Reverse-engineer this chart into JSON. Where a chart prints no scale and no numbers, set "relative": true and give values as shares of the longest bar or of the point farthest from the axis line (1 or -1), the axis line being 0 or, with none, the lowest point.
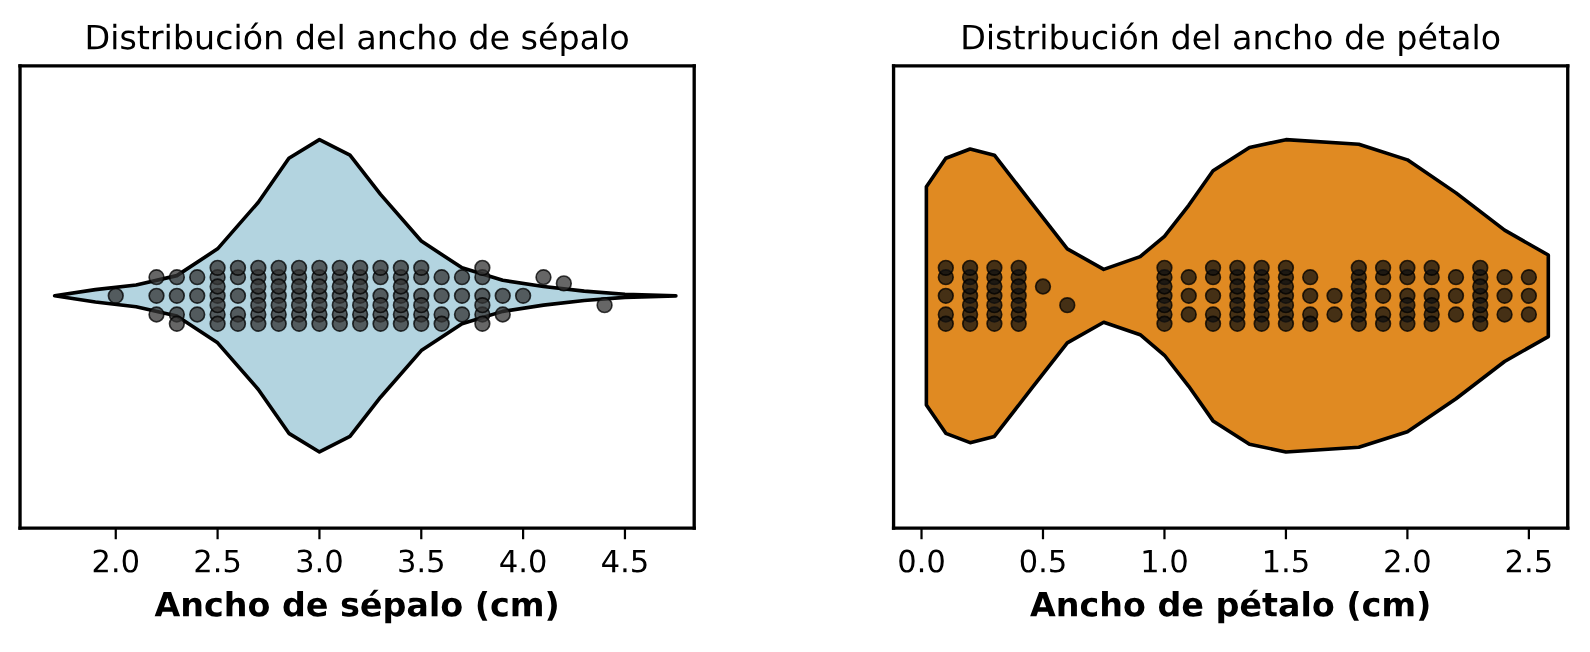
{
  "chart_data": [
    {
      "type": "area",
      "title": "Distribución del ancho de sépalo",
      "xlabel": "Ancho de sépalo (cm)",
      "relative": true,
      "grid": false,
      "xlim": [
        1.53,
        4.84
      ],
      "xticks": [
        {
          "value": 2,
          "label": "2.0"
        },
        2.5,
        {
          "value": 3,
          "label": "3.0"
        },
        3.5,
        {
          "value": 4,
          "label": "4.0"
        },
        4.5
      ],
      "series": [
        {
          "color": "#b3d4e0",
          "x": [
            1.7,
            1.9,
            2.1,
            2.3,
            2.5,
            2.7,
            2.85,
            3.0,
            3.15,
            3.3,
            3.5,
            3.7,
            3.9,
            4.1,
            4.3,
            4.5,
            4.75,
            4.5,
            4.3,
            4.1,
            3.9,
            3.7,
            3.5,
            3.3,
            3.15,
            3.0,
            2.85,
            2.7,
            2.5,
            2.3,
            2.1,
            1.9
          ],
          "values": [
            0.598,
            0.614,
            0.626,
            0.65,
            0.719,
            0.839,
            0.952,
            1.0,
            0.96,
            0.859,
            0.739,
            0.67,
            0.638,
            0.622,
            0.61,
            0.602,
            0.598,
            0.594,
            0.586,
            0.574,
            0.558,
            0.526,
            0.457,
            0.337,
            0.236,
            0.196,
            0.244,
            0.357,
            0.477,
            0.546,
            0.57,
            0.582
          ]
        },
        {
          "type": "scatter",
          "color": "#333333",
          "x": [
            2.0,
            2.2,
            2.2,
            2.2,
            2.3,
            2.3,
            2.3,
            2.3,
            2.4,
            2.4,
            2.4,
            2.5,
            2.5,
            2.5,
            2.5,
            2.5,
            2.5,
            2.5,
            2.6,
            2.6,
            2.6,
            2.6,
            2.6,
            2.7,
            2.7,
            2.7,
            2.7,
            2.7,
            2.7,
            2.7,
            2.8,
            2.8,
            2.8,
            2.8,
            2.8,
            2.8,
            2.8,
            2.9,
            2.9,
            2.9,
            2.9,
            2.9,
            2.9,
            2.9,
            3.0,
            3.0,
            3.0,
            3.0,
            3.0,
            3.0,
            3.0,
            3.1,
            3.1,
            3.1,
            3.1,
            3.1,
            3.1,
            3.1,
            3.2,
            3.2,
            3.2,
            3.2,
            3.2,
            3.2,
            3.2,
            3.3,
            3.3,
            3.3,
            3.3,
            3.3,
            3.3,
            3.4,
            3.4,
            3.4,
            3.4,
            3.4,
            3.4,
            3.4,
            3.5,
            3.5,
            3.5,
            3.5,
            3.5,
            3.5,
            3.6,
            3.6,
            3.6,
            3.6,
            3.7,
            3.7,
            3.7,
            3.8,
            3.8,
            3.8,
            3.8,
            3.8,
            3.8,
            3.9,
            3.9,
            4.0,
            4.1,
            4.2,
            4.4
          ],
          "values": [
            0.598,
            0.598,
            0.55,
            0.646,
            0.598,
            0.55,
            0.646,
            0.526,
            0.598,
            0.55,
            0.646,
            0.598,
            0.55,
            0.646,
            0.526,
            0.67,
            0.574,
            0.622,
            0.598,
            0.55,
            0.646,
            0.526,
            0.67,
            0.598,
            0.55,
            0.646,
            0.526,
            0.67,
            0.574,
            0.622,
            0.598,
            0.55,
            0.646,
            0.526,
            0.67,
            0.574,
            0.622,
            0.598,
            0.55,
            0.646,
            0.526,
            0.67,
            0.574,
            0.622,
            0.598,
            0.55,
            0.646,
            0.526,
            0.67,
            0.574,
            0.622,
            0.598,
            0.55,
            0.646,
            0.526,
            0.67,
            0.574,
            0.622,
            0.598,
            0.55,
            0.646,
            0.526,
            0.67,
            0.574,
            0.622,
            0.598,
            0.55,
            0.646,
            0.526,
            0.67,
            0.574,
            0.598,
            0.55,
            0.646,
            0.526,
            0.67,
            0.574,
            0.622,
            0.598,
            0.55,
            0.646,
            0.526,
            0.67,
            0.574,
            0.598,
            0.55,
            0.646,
            0.526,
            0.598,
            0.55,
            0.646,
            0.598,
            0.55,
            0.646,
            0.526,
            0.67,
            0.574,
            0.598,
            0.55,
            0.598,
            0.646,
            0.63,
            0.574
          ]
        }
      ]
    },
    {
      "type": "area",
      "title": "Distribución del ancho de pétalo",
      "xlabel": "Ancho de pétalo (cm)",
      "relative": true,
      "grid": false,
      "xlim": [
        -0.115,
        2.66
      ],
      "xticks": [
        {
          "value": 0,
          "label": "0.0"
        },
        0.5,
        {
          "value": 1,
          "label": "1.0"
        },
        1.5,
        {
          "value": 2,
          "label": "2.0"
        },
        2.5
      ],
      "series": [
        {
          "color": "#e08a22",
          "x": [
            0.02,
            0.1,
            0.2,
            0.3,
            0.45,
            0.6,
            0.75,
            0.9,
            1.0,
            1.1,
            1.2,
            1.35,
            1.5,
            1.8,
            2.0,
            2.2,
            2.4,
            2.58,
            2.58,
            2.4,
            2.2,
            2.0,
            1.8,
            1.5,
            1.35,
            1.2,
            1.1,
            1.0,
            0.9,
            0.75,
            0.6,
            0.45,
            0.3,
            0.2,
            0.1,
            0.02
          ],
          "values": [
            0.879,
            0.952,
            0.976,
            0.96,
            0.839,
            0.719,
            0.666,
            0.699,
            0.751,
            0.831,
            0.92,
            0.98,
            1.0,
            0.988,
            0.948,
            0.863,
            0.767,
            0.703,
            0.493,
            0.429,
            0.333,
            0.248,
            0.208,
            0.196,
            0.216,
            0.276,
            0.365,
            0.445,
            0.498,
            0.53,
            0.477,
            0.357,
            0.236,
            0.22,
            0.244,
            0.317
          ]
        },
        {
          "type": "scatter",
          "color": "#111111",
          "x": [
            0.1,
            0.1,
            0.1,
            0.1,
            0.1,
            0.2,
            0.2,
            0.2,
            0.2,
            0.2,
            0.2,
            0.2,
            0.3,
            0.3,
            0.3,
            0.3,
            0.3,
            0.3,
            0.3,
            0.4,
            0.4,
            0.4,
            0.4,
            0.4,
            0.4,
            0.4,
            0.5,
            0.6,
            1.0,
            1.0,
            1.0,
            1.0,
            1.0,
            1.0,
            1.0,
            1.1,
            1.1,
            1.1,
            1.2,
            1.2,
            1.2,
            1.2,
            1.2,
            1.3,
            1.3,
            1.3,
            1.3,
            1.3,
            1.3,
            1.3,
            1.4,
            1.4,
            1.4,
            1.4,
            1.4,
            1.4,
            1.4,
            1.5,
            1.5,
            1.5,
            1.5,
            1.5,
            1.5,
            1.5,
            1.6,
            1.6,
            1.6,
            1.6,
            1.7,
            1.7,
            1.8,
            1.8,
            1.8,
            1.8,
            1.8,
            1.8,
            1.8,
            1.9,
            1.9,
            1.9,
            1.9,
            1.9,
            2.0,
            2.0,
            2.0,
            2.0,
            2.0,
            2.0,
            2.1,
            2.1,
            2.1,
            2.1,
            2.1,
            2.1,
            2.2,
            2.2,
            2.2,
            2.3,
            2.3,
            2.3,
            2.3,
            2.3,
            2.3,
            2.3,
            2.4,
            2.4,
            2.4,
            2.5,
            2.5,
            2.5
          ],
          "values": [
            0.598,
            0.55,
            0.646,
            0.526,
            0.67,
            0.598,
            0.55,
            0.646,
            0.526,
            0.67,
            0.574,
            0.622,
            0.598,
            0.55,
            0.646,
            0.526,
            0.67,
            0.574,
            0.622,
            0.598,
            0.55,
            0.646,
            0.526,
            0.67,
            0.574,
            0.622,
            0.622,
            0.574,
            0.598,
            0.55,
            0.646,
            0.526,
            0.67,
            0.574,
            0.622,
            0.598,
            0.55,
            0.646,
            0.598,
            0.55,
            0.646,
            0.526,
            0.67,
            0.598,
            0.55,
            0.646,
            0.526,
            0.67,
            0.574,
            0.622,
            0.598,
            0.55,
            0.646,
            0.526,
            0.67,
            0.574,
            0.622,
            0.598,
            0.55,
            0.646,
            0.526,
            0.67,
            0.574,
            0.622,
            0.598,
            0.55,
            0.646,
            0.526,
            0.598,
            0.55,
            0.598,
            0.55,
            0.646,
            0.526,
            0.67,
            0.574,
            0.622,
            0.598,
            0.55,
            0.646,
            0.526,
            0.67,
            0.598,
            0.55,
            0.646,
            0.526,
            0.67,
            0.574,
            0.598,
            0.55,
            0.646,
            0.526,
            0.67,
            0.574,
            0.598,
            0.55,
            0.646,
            0.598,
            0.55,
            0.646,
            0.526,
            0.67,
            0.574,
            0.622,
            0.598,
            0.55,
            0.646,
            0.598,
            0.55,
            0.646
          ]
        }
      ]
    }
  ]
}
